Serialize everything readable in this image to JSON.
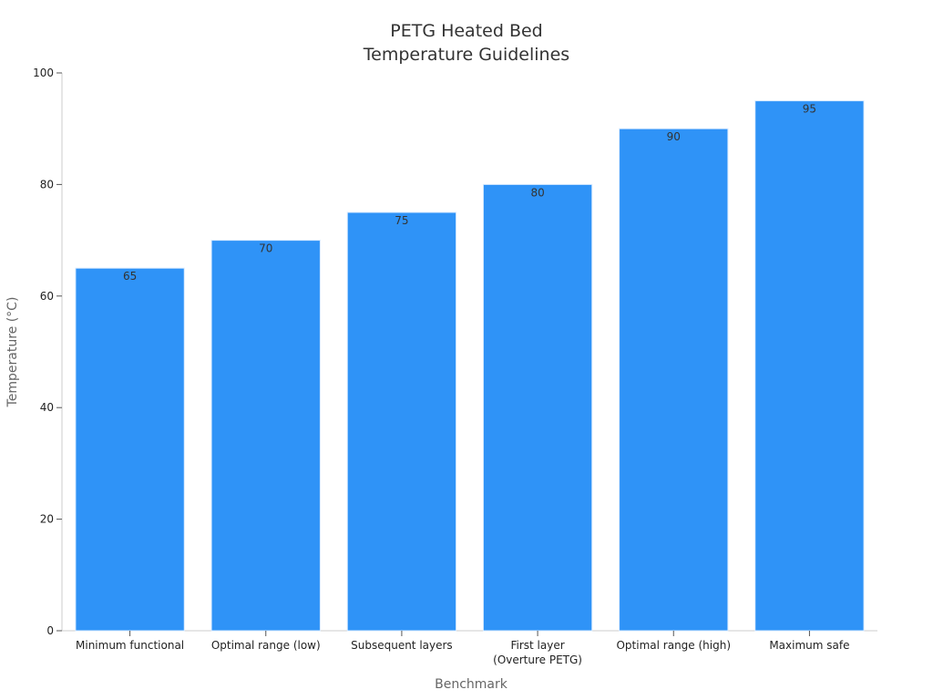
{
  "chart_data": {
    "type": "bar",
    "title_lines": [
      "PETG Heated Bed",
      "Temperature Guidelines"
    ],
    "xlabel": "Benchmark",
    "ylabel": "Temperature (°C)",
    "categories": [
      [
        "Minimum functional"
      ],
      [
        "Optimal range (low)"
      ],
      [
        "Subsequent layers"
      ],
      [
        "First layer",
        "(Overture PETG)"
      ],
      [
        "Optimal range (high)"
      ],
      [
        "Maximum safe"
      ]
    ],
    "values": [
      65,
      70,
      75,
      80,
      90,
      95
    ],
    "data_labels": [
      "65",
      "70",
      "75",
      "80",
      "90",
      "95"
    ],
    "ylim": [
      0,
      100
    ],
    "yticks": [
      0,
      20,
      40,
      60,
      80,
      100
    ],
    "grid": false,
    "bar_color": "#2f93f7",
    "bar_edge_color": "#d9ebff"
  }
}
